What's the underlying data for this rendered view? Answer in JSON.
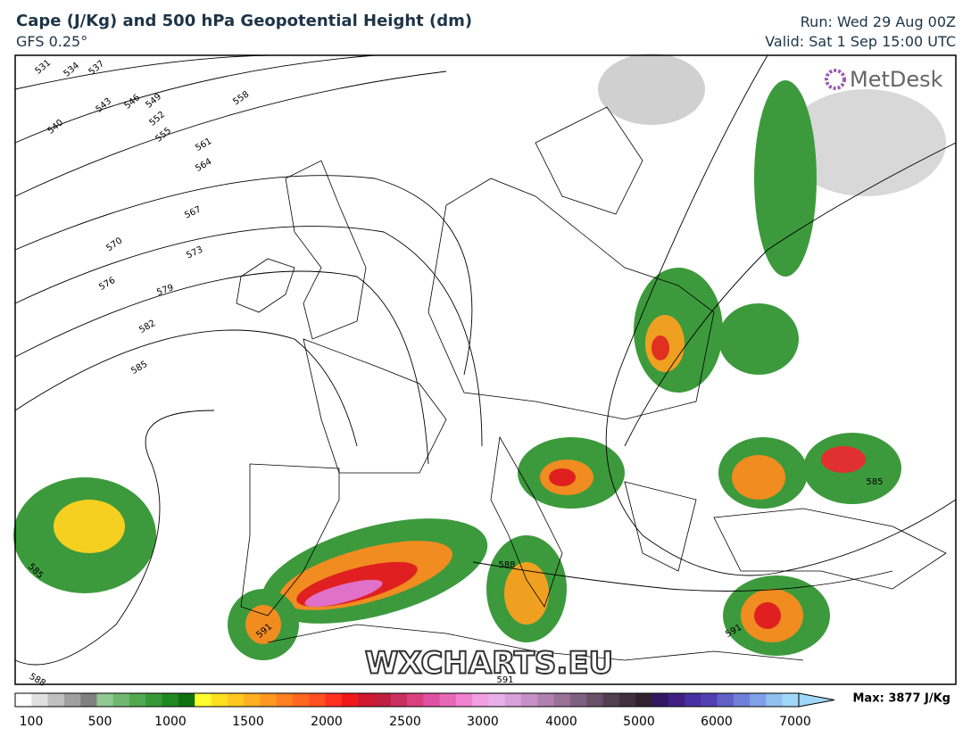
{
  "header": {
    "title": "Cape (J/Kg) and 500 hPa Geopotential Height (dm)",
    "model": "GFS 0.25°",
    "run": "Run: Wed 29 Aug 00Z",
    "valid": "Valid: Sat 1 Sep 15:00 UTC"
  },
  "logo": "MetDesk",
  "watermark": "WXCHARTS.EU",
  "contour_labels": [
    "531",
    "534",
    "537",
    "540",
    "543",
    "546",
    "549",
    "552",
    "555",
    "558",
    "561",
    "564",
    "567",
    "570",
    "573",
    "576",
    "579",
    "582",
    "585",
    "585",
    "588",
    "588",
    "591",
    "591",
    "591",
    "585"
  ],
  "colorbar": {
    "ticks": [
      "100",
      "500",
      "1000",
      "1500",
      "2000",
      "2500",
      "3000",
      "4000",
      "5000",
      "6000",
      "7000"
    ],
    "max": "Max: 3877 J/Kg"
  }
}
